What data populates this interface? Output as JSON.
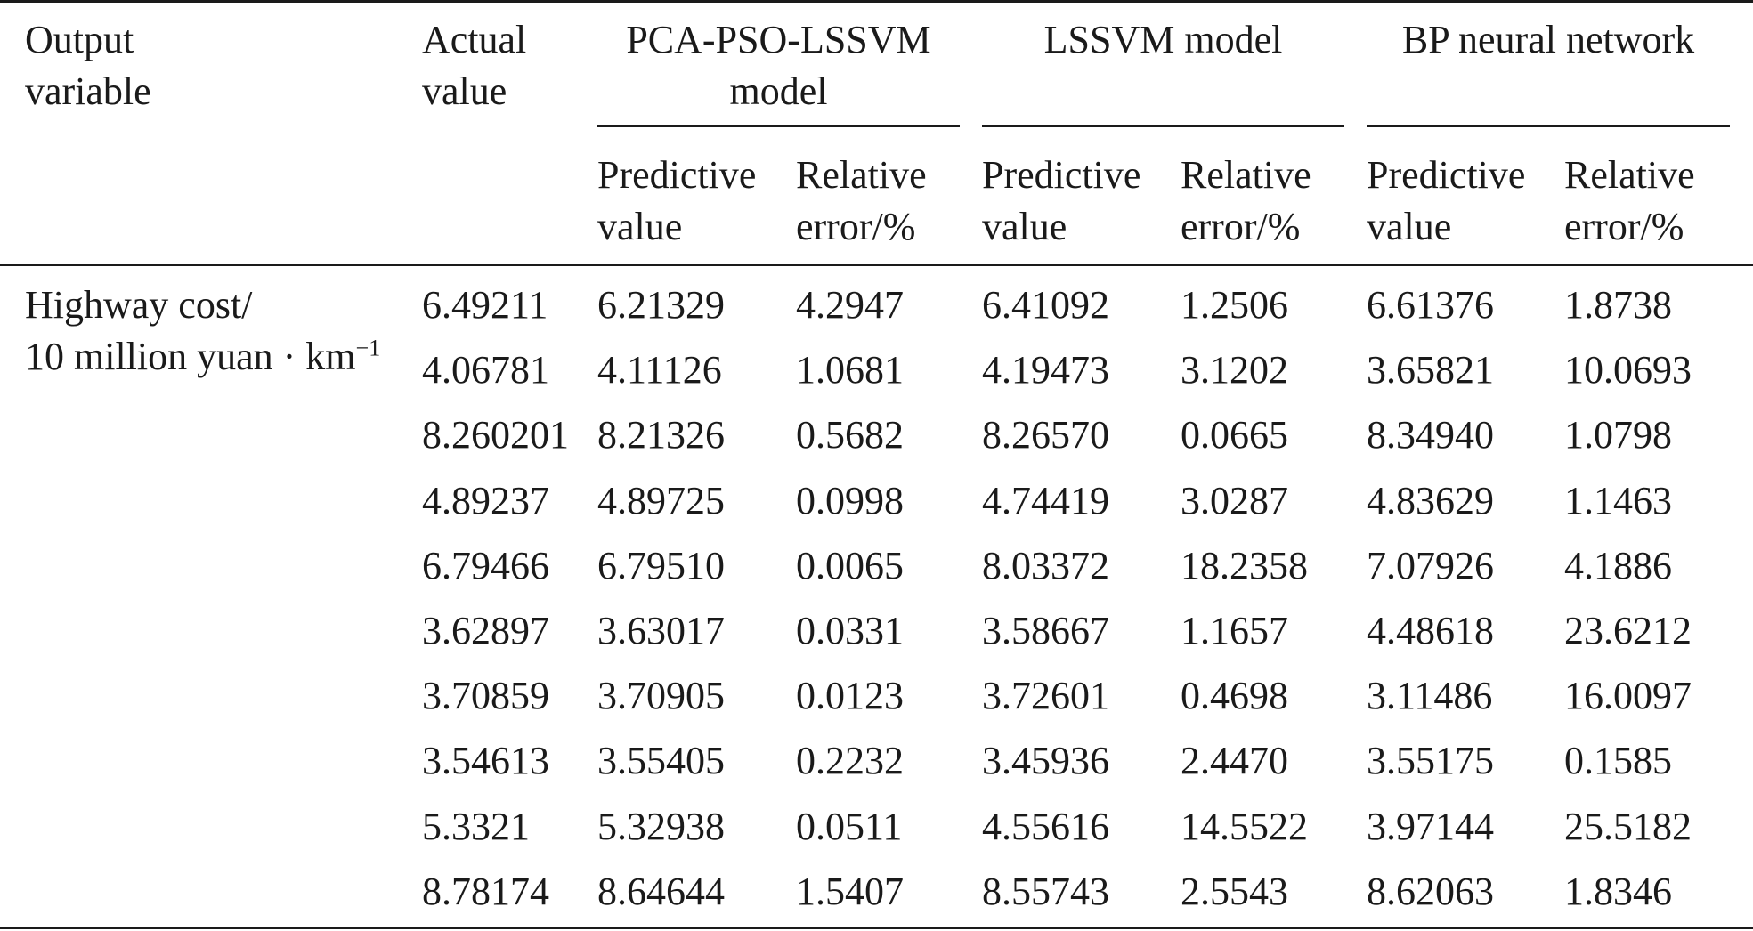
{
  "header": {
    "output_variable_l1": "Output",
    "output_variable_l2": "variable",
    "actual_l1": "Actual",
    "actual_l2": "value",
    "group1_l1": "PCA-PSO-LSSVM",
    "group1_l2": "model",
    "group2": "LSSVM model",
    "group3": "BP neural network",
    "pred_l1": "Predictive",
    "pred_l2": "value",
    "err_l1": "Relative",
    "err_l2": "error/%"
  },
  "row_label": {
    "line1": "Highway cost/",
    "line2": "10 million yuan · km",
    "line2_sup": "−1"
  },
  "rows": [
    [
      "6.49211",
      "6.21329",
      "4.2947",
      "6.41092",
      "1.2506",
      "6.61376",
      "1.8738"
    ],
    [
      "4.06781",
      "4.11126",
      "1.0681",
      "4.19473",
      "3.1202",
      "3.65821",
      "10.0693"
    ],
    [
      "8.260201",
      "8.21326",
      "0.5682",
      "8.26570",
      "0.0665",
      "8.34940",
      "1.0798"
    ],
    [
      "4.89237",
      "4.89725",
      "0.0998",
      "4.74419",
      "3.0287",
      "4.83629",
      "1.1463"
    ],
    [
      "6.79466",
      "6.79510",
      "0.0065",
      "8.03372",
      "18.2358",
      "7.07926",
      "4.1886"
    ],
    [
      "3.62897",
      "3.63017",
      "0.0331",
      "3.58667",
      "1.1657",
      "4.48618",
      "23.6212"
    ],
    [
      "3.70859",
      "3.70905",
      "0.0123",
      "3.72601",
      "0.4698",
      "3.11486",
      "16.0097"
    ],
    [
      "3.54613",
      "3.55405",
      "0.2232",
      "3.45936",
      "2.4470",
      "3.55175",
      "0.1585"
    ],
    [
      "5.3321",
      "5.32938",
      "0.0511",
      "4.55616",
      "14.5522",
      "3.97144",
      "25.5182"
    ],
    [
      "8.78174",
      "8.64644",
      "1.5407",
      "8.55743",
      "2.5543",
      "8.62063",
      "1.8346"
    ]
  ]
}
